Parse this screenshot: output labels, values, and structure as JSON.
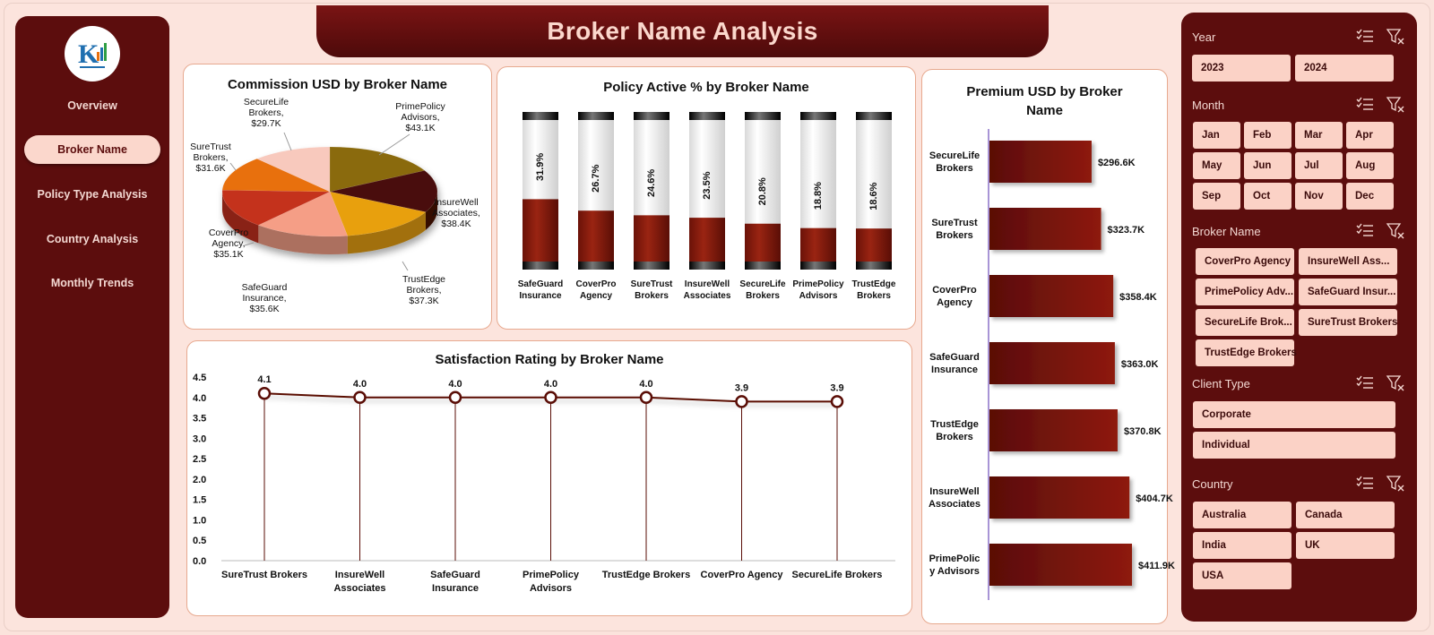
{
  "title": "Broker Name Analysis",
  "nav": {
    "items": [
      {
        "label": "Overview",
        "active": false
      },
      {
        "label": "Broker Name",
        "active": true
      },
      {
        "label": "Policy Type Analysis",
        "active": false
      },
      {
        "label": "Country  Analysis",
        "active": false
      },
      {
        "label": "Monthly Trends",
        "active": false
      }
    ]
  },
  "colors": {
    "maroon": "#5c0d0d",
    "accent": "#fbd2c6",
    "bar": "#8b1a0e"
  },
  "charts": {
    "commission": {
      "title": "Commission USD by Broker Name",
      "chart_data": {
        "type": "pie",
        "slices": [
          {
            "name": "PrimePolicy Advisors",
            "value": 43.1,
            "label": "PrimePolicy\nAdvisors,\n$43.1K",
            "color": "#8a6a0c"
          },
          {
            "name": "InsureWell Associates",
            "value": 38.4,
            "label": "InsureWell\nAssociates,\n$38.4K",
            "color": "#4a1008"
          },
          {
            "name": "TrustEdge Brokers",
            "value": 37.3,
            "label": "TrustEdge\nBrokers,\n$37.3K",
            "color": "#e8a00f"
          },
          {
            "name": "SafeGuard Insurance",
            "value": 35.6,
            "label": "SafeGuard\nInsurance,\n$35.6K",
            "color": "#f59e86"
          },
          {
            "name": "CoverPro Agency",
            "value": 35.1,
            "label": "CoverPro\nAgency,\n$35.1K",
            "color": "#c4321e"
          },
          {
            "name": "SureTrust Brokers",
            "value": 31.6,
            "label": "SureTrust\nBrokers,\n$31.6K",
            "color": "#e8700f"
          },
          {
            "name": "SecureLife Brokers",
            "value": 29.7,
            "label": "SecureLife\nBrokers,\n$29.7K",
            "color": "#f8c9bd"
          }
        ]
      }
    },
    "policy_active": {
      "title": "Policy Active % by Broker Name",
      "chart_data": {
        "type": "bar",
        "categories": [
          "SafeGuard\nInsurance",
          "CoverPro\nAgency",
          "SureTrust\nBrokers",
          "InsureWell\nAssociates",
          "SecureLife\nBrokers",
          "PrimePolicy\nAdvisors",
          "TrustEdge\nBrokers"
        ],
        "values": [
          31.9,
          26.7,
          24.6,
          23.5,
          20.8,
          18.8,
          18.6
        ],
        "labels": [
          "31.9%",
          "26.7%",
          "24.6%",
          "23.5%",
          "20.8%",
          "18.8%",
          "18.6%"
        ]
      }
    },
    "premium": {
      "title": "Premium USD by Broker\nName",
      "chart_data": {
        "type": "bar",
        "orientation": "horizontal",
        "categories": [
          "SecureLife\nBrokers",
          "SureTrust\nBrokers",
          "CoverPro\nAgency",
          "SafeGuard\nInsurance",
          "TrustEdge\nBrokers",
          "InsureWell\nAssociates",
          "PrimePolic\ny Advisors"
        ],
        "values": [
          296.6,
          323.7,
          358.4,
          363.0,
          370.8,
          404.7,
          411.9
        ],
        "labels": [
          "$296.6K",
          "$323.7K",
          "$358.4K",
          "$363.0K",
          "$370.8K",
          "$404.7K",
          "$411.9K"
        ]
      }
    },
    "satisfaction": {
      "title": "Satisfaction Rating by Broker Name",
      "chart_data": {
        "type": "line",
        "categories": [
          "SureTrust Brokers",
          "InsureWell\nAssociates",
          "SafeGuard\nInsurance",
          "PrimePolicy\nAdvisors",
          "TrustEdge Brokers",
          "CoverPro Agency",
          "SecureLife Brokers"
        ],
        "values": [
          4.1,
          4.0,
          4.0,
          4.0,
          4.0,
          3.9,
          3.9
        ],
        "labels": [
          "4.1",
          "4.0",
          "4.0",
          "4.0",
          "4.0",
          "3.9",
          "3.9"
        ],
        "yticks": [
          "0.0",
          "0.5",
          "1.0",
          "1.5",
          "2.0",
          "2.5",
          "3.0",
          "3.5",
          "4.0",
          "4.5"
        ],
        "ylim": [
          0,
          4.5
        ]
      }
    }
  },
  "slicers": {
    "year": {
      "title": "Year",
      "items": [
        "2023",
        "2024"
      ]
    },
    "month": {
      "title": "Month",
      "items": [
        "Jan",
        "Feb",
        "Mar",
        "Apr",
        "May",
        "Jun",
        "Jul",
        "Aug",
        "Sep",
        "Oct",
        "Nov",
        "Dec"
      ]
    },
    "broker": {
      "title": "Broker Name",
      "items": [
        "CoverPro Agency",
        "InsureWell Ass...",
        "PrimePolicy Adv...",
        "SafeGuard Insur...",
        "SecureLife Brok...",
        "SureTrust Brokers",
        "TrustEdge Brokers"
      ]
    },
    "client": {
      "title": "Client Type",
      "items": [
        "Corporate",
        "Individual"
      ]
    },
    "country": {
      "title": "Country",
      "items": [
        "Australia",
        "Canada",
        "India",
        "UK",
        "USA"
      ]
    }
  },
  "icons": {
    "multiselect": "multi-select-icon",
    "clearfilter": "clear-filter-icon"
  }
}
